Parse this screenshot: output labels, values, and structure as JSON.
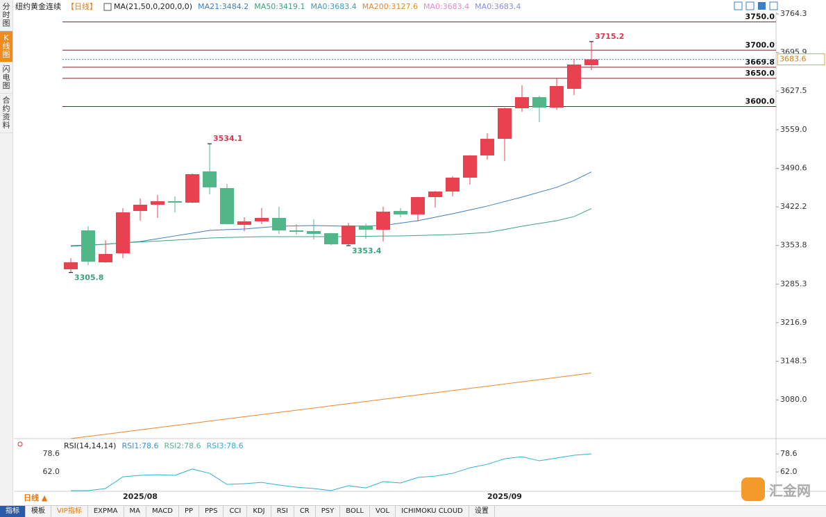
{
  "sidebar": [
    "分时图",
    "K线图",
    "闪电图",
    "合约资料"
  ],
  "header": {
    "symbol": "纽约黄金连续",
    "period": "【日线】",
    "ma_params": "MA(21,50,0,200,0,0)"
  },
  "chart_data": [
    {
      "type": "candlestick",
      "categories": [
        null,
        null,
        null,
        null,
        "2025/08",
        null,
        null,
        null,
        null,
        null,
        null,
        null,
        null,
        null,
        null,
        null,
        null,
        null,
        null,
        null,
        null,
        null,
        null,
        null,
        null,
        "2025/09",
        null,
        null,
        null,
        null,
        null
      ],
      "open": [
        3311.6,
        3380.5,
        3323.9,
        3339.9,
        3414.9,
        3426.0,
        3432.2,
        3429.7,
        3485.0,
        3455.5,
        3390.3,
        3396.5,
        3402.6,
        3380.5,
        3379.3,
        3375.5,
        3355.9,
        3389.1,
        3381.7,
        3414.9,
        3408.8,
        3439.5,
        3449.4,
        3474.0,
        3513.3,
        3542.8,
        3597.0,
        3616.7,
        3598.2,
        3631.4,
        3673.3
      ],
      "high": [
        3331.3,
        3387.9,
        3363.0,
        3420.0,
        3437.0,
        3443.2,
        3440.7,
        3481.4,
        3534.1,
        3463.0,
        3403.9,
        3420.1,
        3422.3,
        3391.6,
        3400.0,
        3376.0,
        3394.0,
        3392.8,
        3422.3,
        3419.8,
        3440.0,
        3450.0,
        3476.5,
        3514.0,
        3552.7,
        3598.0,
        3637.6,
        3619.2,
        3651.0,
        3684.3,
        3715.2
      ],
      "low": [
        3305.8,
        3319.0,
        3323.0,
        3331.3,
        3397.7,
        3402.6,
        3412.5,
        3429.0,
        3444.5,
        3391.0,
        3379.0,
        3391.6,
        3374.3,
        3373.0,
        3364.5,
        3354.0,
        3353.4,
        3365.7,
        3360.8,
        3403.9,
        3396.5,
        3421.0,
        3440.7,
        3461.7,
        3506.0,
        3503.5,
        3590.8,
        3572.4,
        3594.5,
        3620.4,
        3664.7
      ],
      "close": [
        3324.0,
        3325.1,
        3338.7,
        3412.5,
        3426.0,
        3432.2,
        3429.7,
        3480.1,
        3456.8,
        3391.6,
        3396.5,
        3402.6,
        3380.5,
        3378.0,
        3374.3,
        3355.9,
        3389.1,
        3381.7,
        3413.7,
        3408.8,
        3439.5,
        3449.4,
        3474.0,
        3513.3,
        3542.8,
        3597.0,
        3616.7,
        3598.2,
        3636.4,
        3674.5,
        3683.6
      ],
      "up_color": "#e8414f",
      "down_color": "#52b788",
      "series": [
        {
          "name": "MA21:3484.2",
          "color": "#3b7fc4",
          "values": [
            3353.4,
            3354.6,
            3355.9,
            3358.3,
            3360.8,
            3365.7,
            3370.7,
            3375.6,
            3380.5,
            3381.8,
            3383.0,
            3385.5,
            3387.9,
            3388.5,
            3389.1,
            3388.5,
            3387.9,
            3388.5,
            3389.1,
            3393.4,
            3397.7,
            3403.9,
            3410.0,
            3416.8,
            3423.6,
            3431.6,
            3439.5,
            3448.2,
            3456.8,
            3469.0,
            3484.2
          ]
        },
        {
          "name": "MA50:3419.1",
          "color": "#3aa37a",
          "values": [
            3352.2,
            3354.0,
            3356.0,
            3358.3,
            3360.0,
            3361.5,
            3363.3,
            3365.0,
            3366.9,
            3367.8,
            3368.6,
            3369.4,
            3369.4,
            3369.4,
            3369.4,
            3369.4,
            3369.6,
            3370.0,
            3370.5,
            3370.7,
            3371.4,
            3372.3,
            3373.1,
            3375.0,
            3376.8,
            3382.0,
            3387.9,
            3392.8,
            3397.7,
            3405.0,
            3419.1
          ]
        },
        {
          "name": "MA0:3683.4",
          "color": "#3a9bc4"
        },
        {
          "name": "MA200:3127.6",
          "color": "#e8872e",
          "values": [
            3011.4,
            3015.3,
            3019.1,
            3023.0,
            3026.9,
            3030.8,
            3034.6,
            3038.5,
            3042.4,
            3046.3,
            3050.1,
            3054.0,
            3057.9,
            3061.7,
            3065.6,
            3069.5,
            3073.4,
            3077.2,
            3081.1,
            3085.0,
            3088.8,
            3092.7,
            3096.6,
            3100.5,
            3104.3,
            3108.2,
            3112.1,
            3116.0,
            3119.8,
            3123.7,
            3127.6
          ]
        },
        {
          "name": "MA0:3683.4",
          "color": "#e08ad0"
        },
        {
          "name": "MA0:3683.4",
          "color": "#8b8be0"
        }
      ],
      "annotations": [
        3534.1,
        3305.8,
        3353.4,
        3715.2
      ],
      "price_lines": [
        {
          "value": 3750,
          "label": "3750.0"
        },
        {
          "value": 3700,
          "label": "3700.0"
        },
        3669.8,
        {
          "value": 3650,
          "label": "3650.0"
        },
        {
          "value": 3600,
          "label": "3600.0"
        }
      ],
      "current_price": 3683.6,
      "ylim": [
        3011.4,
        3764.3
      ],
      "yticks": [
        3764.3,
        3695.9,
        3627.5,
        {
          "value": 3559,
          "label": "3559.0"
        },
        3490.6,
        3422.2,
        3353.8,
        3285.3,
        3216.9,
        3148.5,
        {
          "value": 3080,
          "label": "3080.0"
        }
      ]
    },
    {
      "type": "line",
      "title": "RSI(14,14,14)",
      "series": [
        {
          "name": "RSI1:78.6",
          "color": "#3b8fd4"
        },
        {
          "name": "RSI2:78.6",
          "color": "#52b788"
        },
        {
          "name": "RSI3:78.6",
          "color": "#2ab0d8",
          "values": [
            44.8,
            44.8,
            46.7,
            57.5,
            58.8,
            59.5,
            58.8,
            64.6,
            60.7,
            50.5,
            51.2,
            52.4,
            49.9,
            48.0,
            46.7,
            44.8,
            49.3,
            47.3,
            53.1,
            51.8,
            56.9,
            58.2,
            60.7,
            65.8,
            69.0,
            74.1,
            76.0,
            72.2,
            74.8,
            77.3,
            78.6
          ]
        }
      ],
      "ylim": [
        41.6,
        90.1
      ],
      "yticks": [
        78.6,
        {
          "value": 62,
          "label": "62.0"
        }
      ]
    }
  ],
  "bottom": {
    "period": "日线 ▲",
    "tabs": [
      "指标",
      "模板",
      "VIP指标",
      "EXPMA",
      "MA",
      "MACD",
      "PP",
      "PPS",
      "CCI",
      "KDJ",
      "RSI",
      "CR",
      "PSY",
      "BOLL",
      "VOL",
      "ICHIMOKU CLOUD",
      "设置"
    ]
  },
  "logo": "汇金网"
}
